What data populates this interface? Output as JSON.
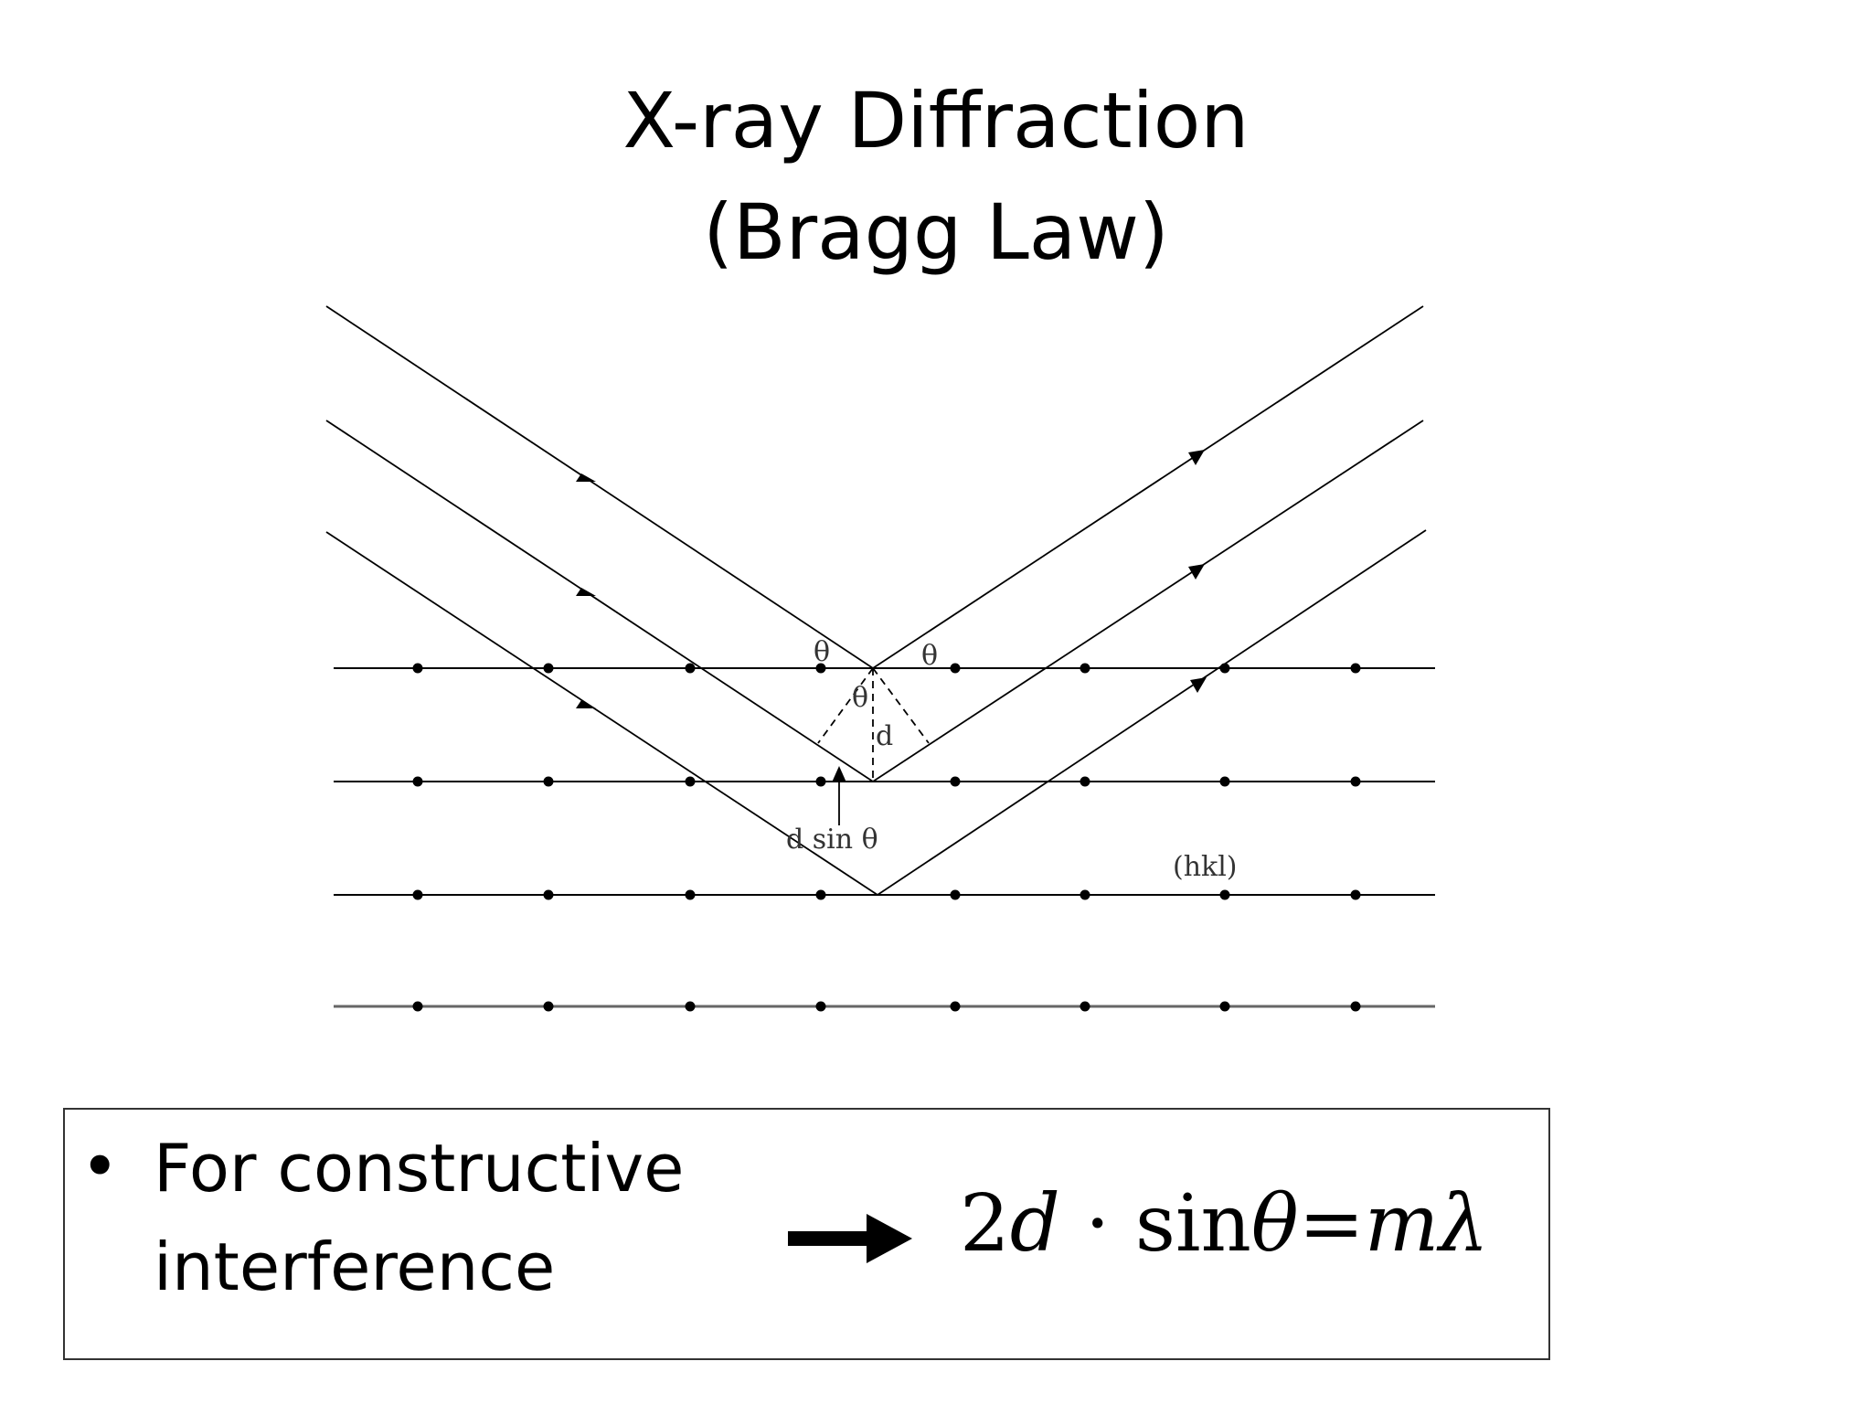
{
  "title": {
    "line1": "X-ray Diffraction",
    "line2": "(Bragg Law)"
  },
  "diagram": {
    "labels": {
      "theta_incident": "θ",
      "theta_reflected": "θ",
      "theta_inner": "θ",
      "spacing": "d",
      "path_difference": "d sin θ",
      "plane_index": "(hkl)"
    },
    "plane_count": 4,
    "atoms_per_plane": 8
  },
  "bullet": {
    "marker": "•",
    "line1": "For constructive",
    "line2": "interference"
  },
  "equation": {
    "two": "2",
    "d": "d",
    "dot": "·",
    "sin": "sin",
    "theta": "θ",
    "equals": "=",
    "m": "m",
    "lambda": "λ"
  }
}
